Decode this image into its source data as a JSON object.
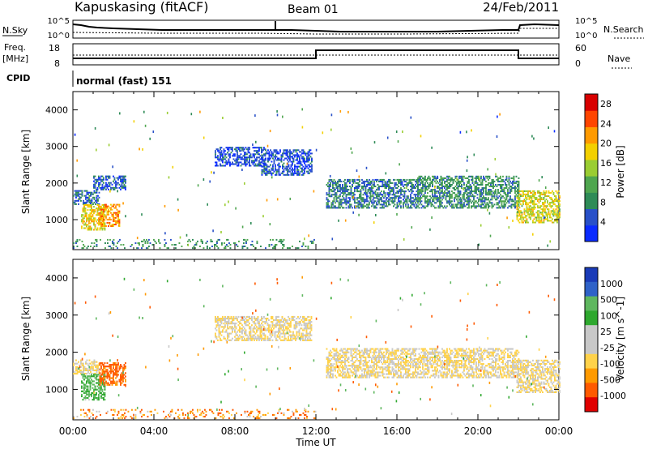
{
  "header": {
    "station": "Kapuskasing (fitACF)",
    "beam": "Beam 01",
    "date": "24/Feb/2011"
  },
  "noise_panel": {
    "left_label": "N.Sky",
    "right_label": "N.Search",
    "left_ticks": [
      "10^5",
      "10^0"
    ],
    "right_ticks": [
      "10^5",
      "10^0"
    ]
  },
  "freq_panel": {
    "left_label_1": "Freq.",
    "left_label_2": "[MHz]",
    "left_ticks": [
      "18",
      "8"
    ],
    "right_label": "Nave",
    "right_ticks": [
      "60",
      "0"
    ]
  },
  "cpid": {
    "label": "CPID",
    "value": "normal (fast) 151"
  },
  "x_axis": {
    "title": "Time UT",
    "ticks": [
      "00:00",
      "04:00",
      "08:00",
      "12:00",
      "16:00",
      "20:00",
      "00:00"
    ]
  },
  "colors": {
    "power_scale": [
      "#0a2bff",
      "#2850c8",
      "#2e8b57",
      "#4fa64f",
      "#9acd32",
      "#f3d000",
      "#ff9a00",
      "#ff4500",
      "#d80000"
    ],
    "velocity_scale": [
      "#e00000",
      "#ff5a00",
      "#ff9a00",
      "#ffd24a",
      "#c8c8c8",
      "#c8c8c8",
      "#2ea82e",
      "#5fb75f",
      "#2f62c8",
      "#1a3bb8"
    ]
  },
  "chart_data": [
    {
      "type": "heatmap",
      "title": "Power",
      "ylabel": "Slant Range [km]",
      "xlim": [
        0,
        24
      ],
      "ylim": [
        180,
        4500
      ],
      "y_ticks": [
        "1000",
        "2000",
        "3000",
        "4000"
      ],
      "colorbar": {
        "label": "Power [dB]",
        "ticks": [
          "4",
          "8",
          "12",
          "16",
          "20",
          "24",
          "28"
        ],
        "range": [
          0,
          30
        ]
      },
      "regions": [
        {
          "t": [
            0.0,
            1.3
          ],
          "r": [
            1400,
            1800
          ],
          "value": 6
        },
        {
          "t": [
            0.4,
            1.6
          ],
          "r": [
            700,
            1400
          ],
          "value": 18
        },
        {
          "t": [
            1.3,
            2.3
          ],
          "r": [
            800,
            1400
          ],
          "value": 22
        },
        {
          "t": [
            1.0,
            2.6
          ],
          "r": [
            1800,
            2200
          ],
          "value": 5
        },
        {
          "t": [
            7.0,
            9.5
          ],
          "r": [
            2450,
            2950
          ],
          "value": 4
        },
        {
          "t": [
            9.3,
            11.8
          ],
          "r": [
            2200,
            2900
          ],
          "value": 4
        },
        {
          "t": [
            12.5,
            17.0
          ],
          "r": [
            1300,
            2100
          ],
          "value": 7
        },
        {
          "t": [
            17.0,
            22.0
          ],
          "r": [
            1300,
            2200
          ],
          "value": 9
        },
        {
          "t": [
            21.9,
            24.0
          ],
          "r": [
            900,
            1800
          ],
          "value": 17
        },
        {
          "t": [
            0.0,
            12.0
          ],
          "r": [
            200,
            450
          ],
          "value": 9
        }
      ]
    },
    {
      "type": "heatmap",
      "title": "Velocity",
      "ylabel": "Slant Range [km]",
      "xlim": [
        0,
        24
      ],
      "ylim": [
        180,
        4500
      ],
      "y_ticks": [
        "1000",
        "2000",
        "3000",
        "4000"
      ],
      "colorbar": {
        "label": "Velocity [m s^-1]",
        "ticks": [
          "1000",
          "500",
          "100",
          "25",
          "-25",
          "-100",
          "-500",
          "-1000"
        ]
      },
      "regions": [
        {
          "t": [
            0.0,
            1.3
          ],
          "r": [
            1400,
            1800
          ],
          "value": 0
        },
        {
          "t": [
            0.4,
            1.6
          ],
          "r": [
            700,
            1400
          ],
          "value": 120
        },
        {
          "t": [
            1.3,
            2.6
          ],
          "r": [
            1100,
            1700
          ],
          "value": -150
        },
        {
          "t": [
            7.0,
            11.8
          ],
          "r": [
            2300,
            2950
          ],
          "value": 0
        },
        {
          "t": [
            12.5,
            22.0
          ],
          "r": [
            1300,
            2100
          ],
          "value": 0
        },
        {
          "t": [
            21.9,
            24.0
          ],
          "r": [
            900,
            1800
          ],
          "value": 0
        },
        {
          "t": [
            0.0,
            12.0
          ],
          "r": [
            200,
            450
          ],
          "value": -80
        }
      ]
    }
  ]
}
